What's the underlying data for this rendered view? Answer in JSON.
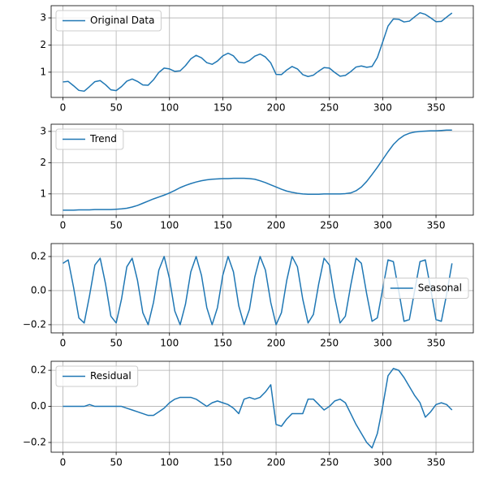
{
  "chart_data": [
    {
      "type": "line",
      "legend": "upper left",
      "grid": true,
      "x": [
        0,
        5,
        10,
        15,
        20,
        25,
        30,
        35,
        40,
        45,
        50,
        55,
        60,
        65,
        70,
        75,
        80,
        85,
        90,
        95,
        100,
        105,
        110,
        115,
        120,
        125,
        130,
        135,
        140,
        145,
        150,
        155,
        160,
        165,
        170,
        175,
        180,
        185,
        190,
        195,
        200,
        205,
        210,
        215,
        220,
        225,
        230,
        235,
        240,
        245,
        250,
        255,
        260,
        265,
        270,
        275,
        280,
        285,
        290,
        295,
        300,
        305,
        310,
        315,
        320,
        325,
        330,
        335,
        340,
        345,
        350,
        355,
        360,
        365
      ],
      "series": [
        {
          "name": "Original Data",
          "color": "#1f77b4",
          "values": [
            0.64,
            0.66,
            0.5,
            0.33,
            0.3,
            0.47,
            0.65,
            0.69,
            0.54,
            0.35,
            0.32,
            0.47,
            0.67,
            0.75,
            0.66,
            0.53,
            0.52,
            0.72,
            0.99,
            1.15,
            1.12,
            1.03,
            1.05,
            1.24,
            1.49,
            1.62,
            1.53,
            1.35,
            1.29,
            1.41,
            1.6,
            1.7,
            1.6,
            1.37,
            1.34,
            1.43,
            1.59,
            1.67,
            1.56,
            1.34,
            0.92,
            0.91,
            1.08,
            1.21,
            1.12,
            0.91,
            0.84,
            0.89,
            1.04,
            1.17,
            1.15,
            0.99,
            0.85,
            0.88,
            1.02,
            1.19,
            1.23,
            1.18,
            1.21,
            1.54,
            2.11,
            2.7,
            2.96,
            2.95,
            2.85,
            2.88,
            3.04,
            3.19,
            3.13,
            3.0,
            2.86,
            2.87,
            3.03,
            3.18
          ]
        }
      ],
      "xlim": [
        -11,
        385
      ],
      "ylim": [
        0.07,
        3.45
      ],
      "xticks": [
        0,
        50,
        100,
        150,
        200,
        250,
        300,
        350
      ],
      "yticks": [
        1,
        2,
        3
      ]
    },
    {
      "type": "line",
      "legend": "upper left",
      "grid": true,
      "x": [
        0,
        5,
        10,
        15,
        20,
        25,
        30,
        35,
        40,
        45,
        50,
        55,
        60,
        65,
        70,
        75,
        80,
        85,
        90,
        95,
        100,
        105,
        110,
        115,
        120,
        125,
        130,
        135,
        140,
        145,
        150,
        155,
        160,
        165,
        170,
        175,
        180,
        185,
        190,
        195,
        200,
        205,
        210,
        215,
        220,
        225,
        230,
        235,
        240,
        245,
        250,
        255,
        260,
        265,
        270,
        275,
        280,
        285,
        290,
        295,
        300,
        305,
        310,
        315,
        320,
        325,
        330,
        335,
        340,
        345,
        350,
        355,
        360,
        365
      ],
      "series": [
        {
          "name": "Trend",
          "color": "#1f77b4",
          "values": [
            0.48,
            0.48,
            0.48,
            0.49,
            0.49,
            0.49,
            0.5,
            0.5,
            0.5,
            0.5,
            0.51,
            0.52,
            0.54,
            0.58,
            0.63,
            0.7,
            0.77,
            0.84,
            0.9,
            0.96,
            1.03,
            1.11,
            1.2,
            1.27,
            1.33,
            1.38,
            1.42,
            1.45,
            1.47,
            1.48,
            1.49,
            1.49,
            1.5,
            1.5,
            1.5,
            1.49,
            1.47,
            1.42,
            1.36,
            1.29,
            1.22,
            1.15,
            1.09,
            1.05,
            1.02,
            1.0,
            0.99,
            0.99,
            0.99,
            1.0,
            1.0,
            1.0,
            1.0,
            1.01,
            1.03,
            1.1,
            1.22,
            1.4,
            1.62,
            1.85,
            2.1,
            2.35,
            2.58,
            2.75,
            2.87,
            2.94,
            2.98,
            3.0,
            3.01,
            3.02,
            3.02,
            3.03,
            3.04,
            3.04
          ]
        }
      ],
      "xlim": [
        -11,
        385
      ],
      "ylim": [
        0.32,
        3.23
      ],
      "xticks": [
        0,
        50,
        100,
        150,
        200,
        250,
        300,
        350
      ],
      "yticks": [
        1,
        2,
        3
      ]
    },
    {
      "type": "line",
      "legend": "center right",
      "grid": true,
      "x": [
        0,
        5,
        10,
        15,
        20,
        25,
        30,
        35,
        40,
        45,
        50,
        55,
        60,
        65,
        70,
        75,
        80,
        85,
        90,
        95,
        100,
        105,
        110,
        115,
        120,
        125,
        130,
        135,
        140,
        145,
        150,
        155,
        160,
        165,
        170,
        175,
        180,
        185,
        190,
        195,
        200,
        205,
        210,
        215,
        220,
        225,
        230,
        235,
        240,
        245,
        250,
        255,
        260,
        265,
        270,
        275,
        280,
        285,
        290,
        295,
        300,
        305,
        310,
        315,
        320,
        325,
        330,
        335,
        340,
        345,
        350,
        355,
        360,
        365
      ],
      "series": [
        {
          "name": "Seasonal",
          "color": "#1f77b4",
          "values": [
            0.16,
            0.18,
            0.02,
            -0.16,
            -0.19,
            -0.03,
            0.15,
            0.19,
            0.04,
            -0.15,
            -0.19,
            -0.05,
            0.14,
            0.19,
            0.06,
            -0.13,
            -0.2,
            -0.07,
            0.12,
            0.2,
            0.07,
            -0.12,
            -0.2,
            -0.08,
            0.11,
            0.2,
            0.09,
            -0.1,
            -0.2,
            -0.1,
            0.09,
            0.2,
            0.11,
            -0.09,
            -0.2,
            -0.11,
            0.08,
            0.2,
            0.12,
            -0.07,
            -0.2,
            -0.13,
            0.06,
            0.2,
            0.14,
            -0.05,
            -0.19,
            -0.14,
            0.04,
            0.19,
            0.15,
            -0.04,
            -0.19,
            -0.15,
            0.03,
            0.19,
            0.16,
            -0.02,
            -0.18,
            -0.16,
            0.01,
            0.18,
            0.17,
            0,
            -0.18,
            -0.17,
            0,
            0.17,
            0.18,
            0.01,
            -0.17,
            -0.18,
            -0.02,
            0.16
          ]
        }
      ],
      "xlim": [
        -11,
        385
      ],
      "ylim": [
        -0.248,
        0.276
      ],
      "xticks": [
        0,
        50,
        100,
        150,
        200,
        250,
        300,
        350
      ],
      "yticks": [
        {
          "value": -0.2,
          "label": "−0.2"
        },
        {
          "value": 0,
          "label": "0.0"
        },
        0.2
      ]
    },
    {
      "type": "line",
      "legend": "upper left",
      "grid": true,
      "x": [
        0,
        5,
        10,
        15,
        20,
        25,
        30,
        35,
        40,
        45,
        50,
        55,
        60,
        65,
        70,
        75,
        80,
        85,
        90,
        95,
        100,
        105,
        110,
        115,
        120,
        125,
        130,
        135,
        140,
        145,
        150,
        155,
        160,
        165,
        170,
        175,
        180,
        185,
        190,
        195,
        200,
        205,
        210,
        215,
        220,
        225,
        230,
        235,
        240,
        245,
        250,
        255,
        260,
        265,
        270,
        275,
        280,
        285,
        290,
        295,
        300,
        305,
        310,
        315,
        320,
        325,
        330,
        335,
        340,
        345,
        350,
        355,
        360,
        365
      ],
      "series": [
        {
          "name": "Residual",
          "color": "#1f77b4",
          "values": [
            0,
            0,
            0,
            0,
            0,
            0.01,
            0,
            0,
            0,
            0,
            0,
            0,
            -0.01,
            -0.02,
            -0.03,
            -0.04,
            -0.05,
            -0.05,
            -0.03,
            -0.01,
            0.02,
            0.04,
            0.05,
            0.05,
            0.05,
            0.04,
            0.02,
            0,
            0.02,
            0.03,
            0.02,
            0.01,
            -0.01,
            -0.04,
            0.04,
            0.05,
            0.04,
            0.05,
            0.08,
            0.12,
            -0.1,
            -0.11,
            -0.07,
            -0.04,
            -0.04,
            -0.04,
            0.04,
            0.04,
            0.01,
            -0.02,
            0,
            0.03,
            0.04,
            0.02,
            -0.04,
            -0.1,
            -0.15,
            -0.2,
            -0.23,
            -0.15,
            0,
            0.17,
            0.21,
            0.2,
            0.16,
            0.11,
            0.06,
            0.02,
            -0.06,
            -0.03,
            0.01,
            0.02,
            0.01,
            -0.02
          ]
        }
      ],
      "xlim": [
        -11,
        385
      ],
      "ylim": [
        -0.254,
        0.25
      ],
      "xticks": [
        0,
        50,
        100,
        150,
        200,
        250,
        300,
        350
      ],
      "yticks": [
        {
          "value": -0.2,
          "label": "−0.2"
        },
        {
          "value": 0,
          "label": "0.0"
        },
        0.2
      ]
    }
  ]
}
